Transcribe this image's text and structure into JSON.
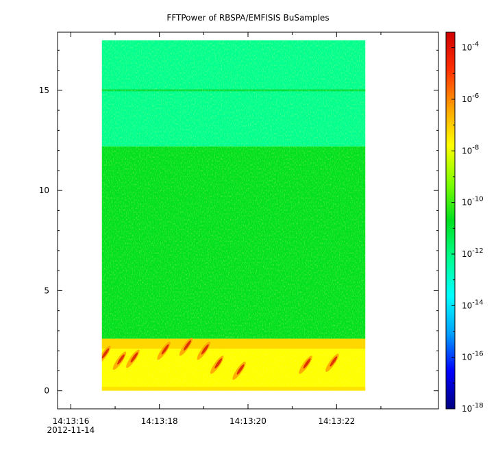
{
  "chart_data": {
    "type": "heatmap",
    "title": "FFTPower of RBSPA/EMFISIS  BuSamples",
    "xlabel": "",
    "ylabel": "",
    "x_ticks": [
      {
        "label": "14:13:16",
        "sublabel": "2012-11-14",
        "t": 16
      },
      {
        "label": "14:13:18",
        "t": 18
      },
      {
        "label": "14:13:20",
        "t": 20
      },
      {
        "label": "14:13:22",
        "t": 22
      }
    ],
    "x_minor_ticks": [
      17,
      19,
      21,
      23
    ],
    "xlim": [
      15.7,
      24.3
    ],
    "x_data_range": [
      16.7,
      22.65
    ],
    "ylim": [
      -0.9,
      17.9
    ],
    "y_data_range": [
      0,
      17.5
    ],
    "y_ticks": [
      0,
      5,
      10,
      15
    ],
    "y_tick_labels": [
      "0",
      "5",
      "10",
      "15"
    ],
    "colorbar": {
      "scale": "log",
      "range_exponent": [
        -18,
        -3.4
      ],
      "tick_exponents": [
        -18,
        -16,
        -14,
        -12,
        -10,
        -8,
        -6,
        -4
      ],
      "tick_base": "10",
      "colors": [
        "#000080",
        "#0000ff",
        "#00a0ff",
        "#00ffff",
        "#00ff90",
        "#00e020",
        "#80ff00",
        "#ffff00",
        "#ffa000",
        "#ff3000",
        "#d00000"
      ]
    },
    "bands": [
      {
        "y_range": [
          12.2,
          17.5
        ],
        "level_exponent": -12.5,
        "note_line_at": 15
      },
      {
        "y_range": [
          2.6,
          12.2
        ],
        "level_exponent": -10.5
      },
      {
        "y_range": [
          0,
          2.6
        ],
        "level_exponent": -8.5
      }
    ],
    "emission_bursts": [
      {
        "t": 16.75,
        "f": 1.8,
        "level_exponent": -6
      },
      {
        "t": 17.1,
        "f": 1.5,
        "level_exponent": -6
      },
      {
        "t": 17.4,
        "f": 1.6,
        "level_exponent": -6
      },
      {
        "t": 18.1,
        "f": 2.0,
        "level_exponent": -6
      },
      {
        "t": 18.6,
        "f": 2.2,
        "level_exponent": -6
      },
      {
        "t": 19.0,
        "f": 2.0,
        "level_exponent": -6
      },
      {
        "t": 19.3,
        "f": 1.3,
        "level_exponent": -6
      },
      {
        "t": 19.8,
        "f": 1.0,
        "level_exponent": -6
      },
      {
        "t": 21.3,
        "f": 1.3,
        "level_exponent": -7
      },
      {
        "t": 21.9,
        "f": 1.4,
        "level_exponent": -6
      }
    ]
  }
}
